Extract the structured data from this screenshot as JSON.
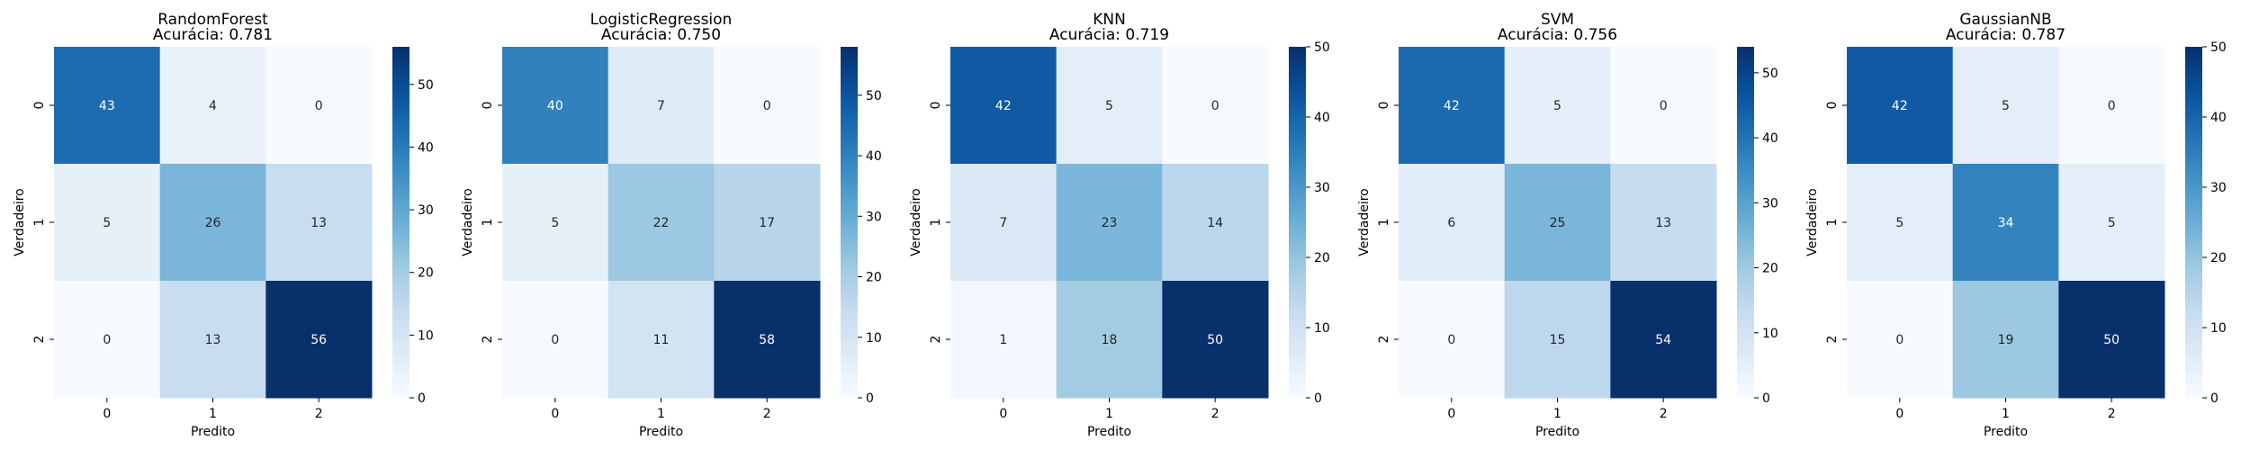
{
  "chart_data": [
    {
      "type": "heatmap",
      "title": "RandomForest",
      "subtitle": "Acurácia: 0.781",
      "xlabel": "Predito",
      "ylabel": "Verdadeiro",
      "x_categories": [
        "0",
        "1",
        "2"
      ],
      "y_categories": [
        "0",
        "1",
        "2"
      ],
      "values": [
        [
          43,
          4,
          0
        ],
        [
          5,
          26,
          13
        ],
        [
          0,
          13,
          56
        ]
      ],
      "color_range": [
        0,
        56
      ],
      "colorbar_ticks": [
        0,
        10,
        20,
        30,
        40,
        50
      ],
      "colormap": "Blues"
    },
    {
      "type": "heatmap",
      "title": "LogisticRegression",
      "subtitle": "Acurácia: 0.750",
      "xlabel": "Predito",
      "ylabel": "Verdadeiro",
      "x_categories": [
        "0",
        "1",
        "2"
      ],
      "y_categories": [
        "0",
        "1",
        "2"
      ],
      "values": [
        [
          40,
          7,
          0
        ],
        [
          5,
          22,
          17
        ],
        [
          0,
          11,
          58
        ]
      ],
      "color_range": [
        0,
        58
      ],
      "colorbar_ticks": [
        0,
        10,
        20,
        30,
        40,
        50
      ],
      "colormap": "Blues"
    },
    {
      "type": "heatmap",
      "title": "KNN",
      "subtitle": "Acurácia: 0.719",
      "xlabel": "Predito",
      "ylabel": "Verdadeiro",
      "x_categories": [
        "0",
        "1",
        "2"
      ],
      "y_categories": [
        "0",
        "1",
        "2"
      ],
      "values": [
        [
          42,
          5,
          0
        ],
        [
          7,
          23,
          14
        ],
        [
          1,
          18,
          50
        ]
      ],
      "color_range": [
        0,
        50
      ],
      "colorbar_ticks": [
        0,
        10,
        20,
        30,
        40,
        50
      ],
      "colormap": "Blues"
    },
    {
      "type": "heatmap",
      "title": "SVM",
      "subtitle": "Acurácia: 0.756",
      "xlabel": "Predito",
      "ylabel": "Verdadeiro",
      "x_categories": [
        "0",
        "1",
        "2"
      ],
      "y_categories": [
        "0",
        "1",
        "2"
      ],
      "values": [
        [
          42,
          5,
          0
        ],
        [
          6,
          25,
          13
        ],
        [
          0,
          15,
          54
        ]
      ],
      "color_range": [
        0,
        54
      ],
      "colorbar_ticks": [
        0,
        10,
        20,
        30,
        40,
        50
      ],
      "colormap": "Blues"
    },
    {
      "type": "heatmap",
      "title": "GaussianNB",
      "subtitle": "Acurácia: 0.787",
      "xlabel": "Predito",
      "ylabel": "Verdadeiro",
      "x_categories": [
        "0",
        "1",
        "2"
      ],
      "y_categories": [
        "0",
        "1",
        "2"
      ],
      "values": [
        [
          42,
          5,
          0
        ],
        [
          5,
          34,
          5
        ],
        [
          0,
          19,
          50
        ]
      ],
      "color_range": [
        0,
        50
      ],
      "colorbar_ticks": [
        0,
        10,
        20,
        30,
        40,
        50
      ],
      "colormap": "Blues"
    }
  ]
}
